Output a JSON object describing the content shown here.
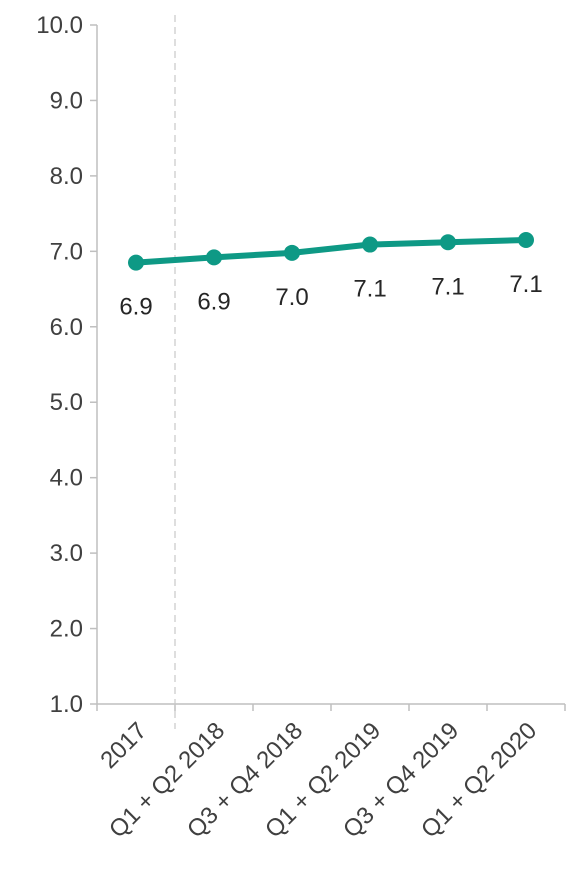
{
  "chart_data": {
    "type": "line",
    "title": "",
    "xlabel": "",
    "ylabel": "",
    "categories": [
      "2017",
      "Q1 + Q2 2018",
      "Q3 + Q4 2018",
      "Q1 + Q2 2019",
      "Q3 + Q4 2019",
      "Q1 + Q2 2020"
    ],
    "series": [
      {
        "values": [
          6.85,
          6.92,
          6.98,
          7.09,
          7.12,
          7.15
        ],
        "data_labels": [
          "6.9",
          "6.9",
          "7.0",
          "7.1",
          "7.1",
          "7.1"
        ]
      }
    ],
    "ylim": [
      1.0,
      10.0
    ],
    "y_ticks": [
      "1.0",
      "2.0",
      "3.0",
      "4.0",
      "5.0",
      "6.0",
      "7.0",
      "8.0",
      "9.0",
      "10.0"
    ],
    "grid": false,
    "legend": "none",
    "divider_after_category": "2017",
    "colors": {
      "series": "#0e9985",
      "axis": "#bfbfbf",
      "divider": "#c8c8c8",
      "text": "#404040"
    }
  }
}
